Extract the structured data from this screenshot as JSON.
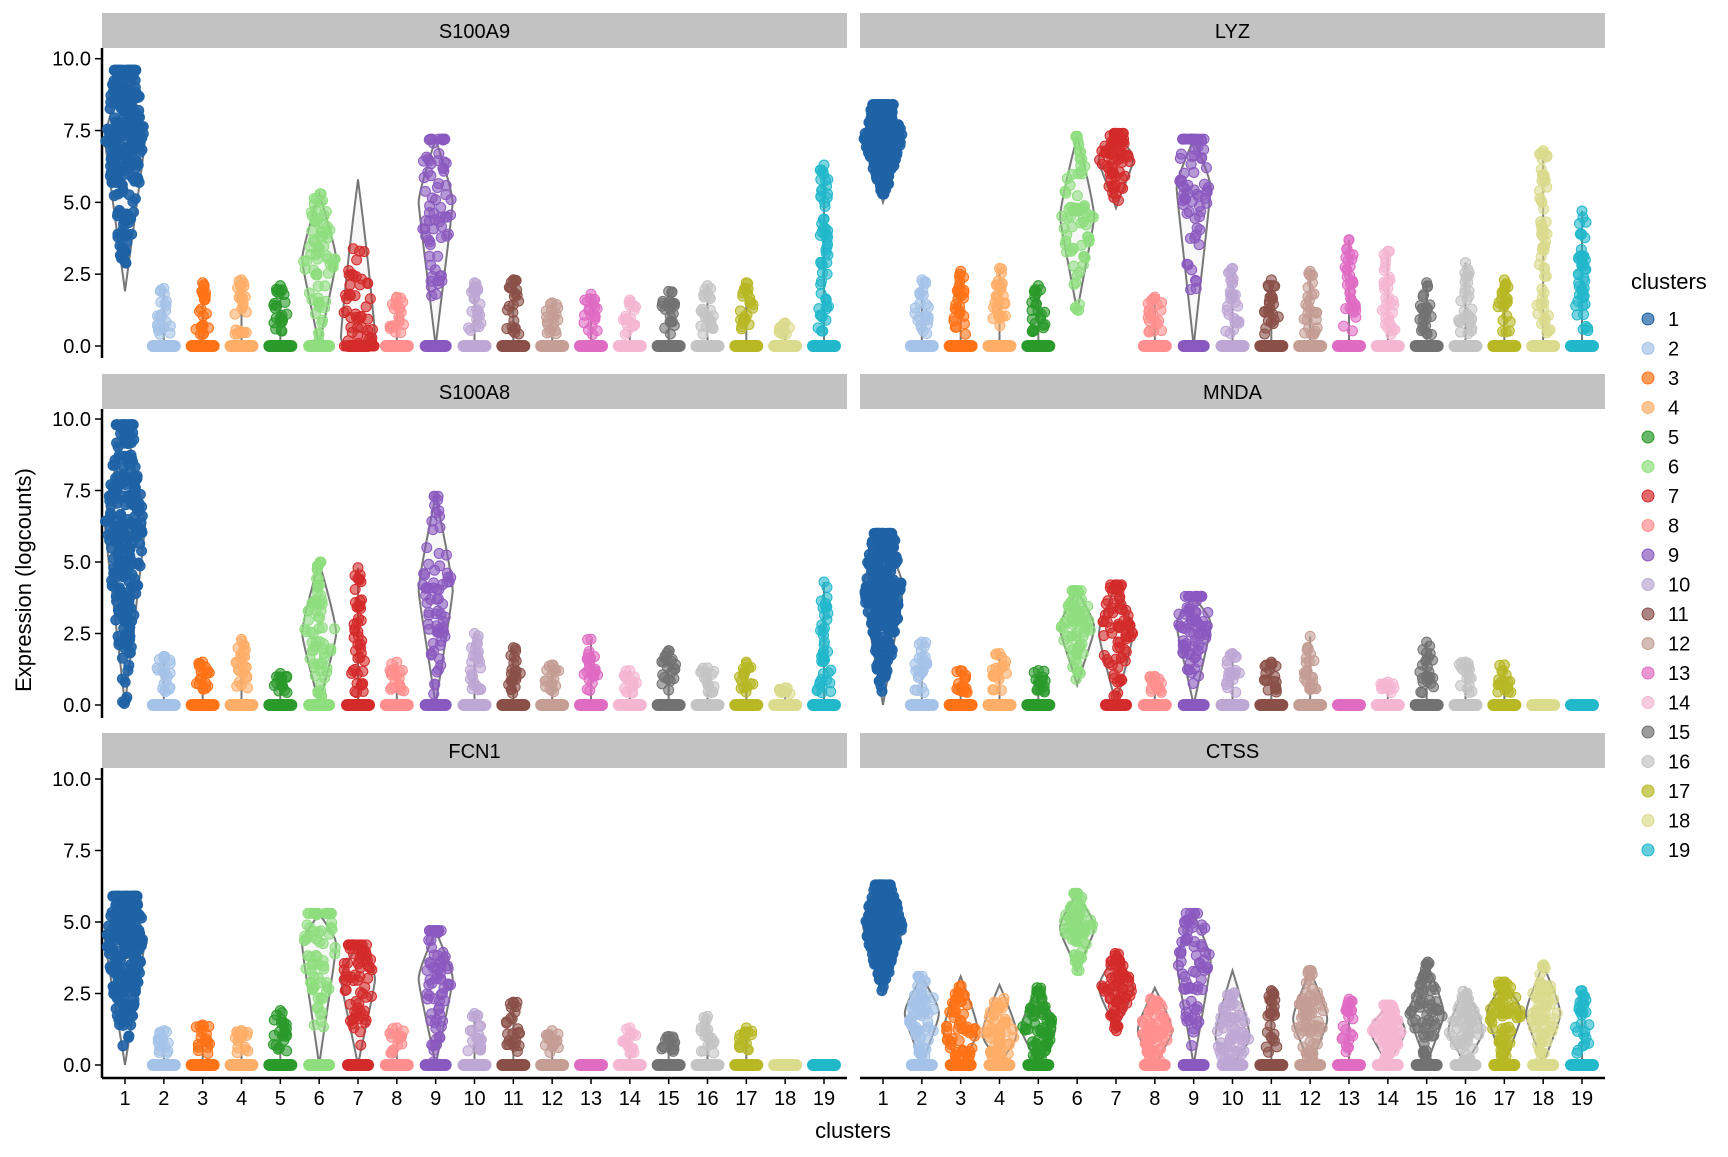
{
  "chart_data": {
    "type": "violin",
    "xlabel": "clusters",
    "ylabel": "Expression (logcounts)",
    "ylim": [
      0,
      10
    ],
    "yticks": [
      "0.0",
      "2.5",
      "5.0",
      "7.5",
      "10.0"
    ],
    "ytick_values": [
      0,
      2.5,
      5,
      7.5,
      10
    ],
    "categories": [
      "1",
      "2",
      "3",
      "4",
      "5",
      "6",
      "7",
      "8",
      "9",
      "10",
      "11",
      "12",
      "13",
      "14",
      "15",
      "16",
      "17",
      "18",
      "19"
    ],
    "legend": {
      "title": "clusters",
      "placement": "right"
    },
    "colors": [
      "#1f63a6",
      "#a5c3e8",
      "#ff7216",
      "#ffae68",
      "#2a9a2a",
      "#8ede7e",
      "#d42a2a",
      "#ff8f8e",
      "#8a59bf",
      "#bea7d4",
      "#8a5048",
      "#c49d94",
      "#e06bc3",
      "#f5b6d2",
      "#727272",
      "#c4c4c4",
      "#b7b824",
      "#dbdb8d",
      "#22b8cc"
    ],
    "value_format": "per cluster [min, mode, max] expression",
    "panels": [
      {
        "gene": "S100A9",
        "values": [
          [
            1.9,
            7.2,
            9.6
          ],
          [
            0,
            0,
            2.0
          ],
          [
            0,
            0,
            2.2
          ],
          [
            0,
            0,
            2.3
          ],
          [
            0,
            0,
            2.1
          ],
          [
            0,
            3.0,
            5.3
          ],
          [
            0,
            0.3,
            5.8
          ],
          [
            0,
            0,
            1.7
          ],
          [
            0,
            5.0,
            7.2
          ],
          [
            0,
            0,
            2.2
          ],
          [
            0,
            0,
            2.3
          ],
          [
            0,
            0,
            1.5
          ],
          [
            0,
            0,
            1.8
          ],
          [
            0,
            0,
            1.6
          ],
          [
            0,
            0,
            1.9
          ],
          [
            0,
            0,
            2.1
          ],
          [
            0,
            0,
            2.2
          ],
          [
            0,
            0,
            0.8
          ],
          [
            0,
            0,
            6.3
          ]
        ]
      },
      {
        "gene": "LYZ",
        "values": [
          [
            5.0,
            7.3,
            8.4
          ],
          [
            0,
            0,
            2.3
          ],
          [
            0,
            0,
            2.6
          ],
          [
            0,
            0,
            2.7
          ],
          [
            0,
            0,
            2.1
          ],
          [
            1.2,
            4.5,
            7.3
          ],
          [
            4.8,
            6.5,
            7.4
          ],
          [
            0,
            0,
            1.7
          ],
          [
            0,
            5.5,
            7.2
          ],
          [
            0,
            0,
            2.7
          ],
          [
            0,
            0,
            2.3
          ],
          [
            0,
            0,
            2.6
          ],
          [
            0,
            0,
            3.7
          ],
          [
            0,
            0,
            3.3
          ],
          [
            0,
            0,
            2.2
          ],
          [
            0,
            0,
            2.9
          ],
          [
            0,
            0,
            2.3
          ],
          [
            0,
            0,
            6.8
          ],
          [
            0,
            0,
            4.7
          ]
        ]
      },
      {
        "gene": "S100A8",
        "values": [
          [
            0,
            6.3,
            9.8
          ],
          [
            0,
            0,
            1.7
          ],
          [
            0,
            0,
            1.5
          ],
          [
            0,
            0,
            2.3
          ],
          [
            0,
            0,
            1.1
          ],
          [
            0,
            2.5,
            5.0
          ],
          [
            0,
            0,
            4.8
          ],
          [
            0,
            0,
            1.5
          ],
          [
            0,
            4.0,
            7.3
          ],
          [
            0,
            0,
            2.5
          ],
          [
            0,
            0,
            2.0
          ],
          [
            0,
            0,
            1.4
          ],
          [
            0,
            0,
            2.3
          ],
          [
            0,
            0,
            1.2
          ],
          [
            0,
            0,
            1.9
          ],
          [
            0,
            0,
            1.3
          ],
          [
            0,
            0,
            1.5
          ],
          [
            0,
            0,
            0.6
          ],
          [
            0,
            0,
            4.3
          ]
        ]
      },
      {
        "gene": "MNDA",
        "values": [
          [
            0,
            4.1,
            6.0
          ],
          [
            0,
            0,
            2.2
          ],
          [
            0,
            0,
            1.2
          ],
          [
            0,
            0,
            1.8
          ],
          [
            0,
            0,
            1.2
          ],
          [
            0.7,
            2.7,
            4.0
          ],
          [
            0,
            2.5,
            4.2
          ],
          [
            0,
            0,
            1.0
          ],
          [
            0,
            2.8,
            3.8
          ],
          [
            0,
            0,
            1.8
          ],
          [
            0,
            0,
            1.5
          ],
          [
            0,
            0,
            2.4
          ],
          [
            0,
            0,
            0
          ],
          [
            0,
            0,
            0.8
          ],
          [
            0,
            0,
            2.2
          ],
          [
            0,
            0,
            1.5
          ],
          [
            0,
            0,
            1.4
          ],
          [
            0,
            0,
            0
          ],
          [
            0,
            0,
            0
          ]
        ]
      },
      {
        "gene": "FCN1",
        "values": [
          [
            0,
            4.4,
            5.9
          ],
          [
            0,
            0,
            1.2
          ],
          [
            0,
            0,
            1.4
          ],
          [
            0,
            0,
            1.2
          ],
          [
            0,
            0,
            1.9
          ],
          [
            0,
            4.2,
            5.3
          ],
          [
            0,
            3.0,
            4.2
          ],
          [
            0,
            0,
            1.3
          ],
          [
            0,
            3.0,
            4.7
          ],
          [
            0,
            0,
            1.8
          ],
          [
            0,
            0,
            2.2
          ],
          [
            0,
            0,
            1.2
          ],
          [
            0,
            0,
            0
          ],
          [
            0,
            0,
            1.3
          ],
          [
            0,
            0,
            1.0
          ],
          [
            0,
            0,
            1.7
          ],
          [
            0,
            0,
            1.3
          ],
          [
            0,
            0,
            0
          ],
          [
            0,
            0,
            0
          ]
        ]
      },
      {
        "gene": "CTSS",
        "values": [
          [
            2.5,
            4.9,
            6.3
          ],
          [
            0,
            1.8,
            3.1
          ],
          [
            0,
            1.2,
            3.1
          ],
          [
            0,
            1.1,
            2.8
          ],
          [
            0,
            1.3,
            2.7
          ],
          [
            3.3,
            4.8,
            6.0
          ],
          [
            1.2,
            2.7,
            3.9
          ],
          [
            0,
            1.2,
            2.7
          ],
          [
            0,
            3.6,
            5.3
          ],
          [
            0,
            1.0,
            3.3
          ],
          [
            0,
            0,
            2.6
          ],
          [
            0,
            1.6,
            3.3
          ],
          [
            0,
            0,
            2.3
          ],
          [
            0,
            1.2,
            2.1
          ],
          [
            0,
            1.8,
            3.6
          ],
          [
            0,
            1.2,
            2.7
          ],
          [
            0,
            1.8,
            2.9
          ],
          [
            0,
            1.8,
            3.5
          ],
          [
            0,
            0,
            2.6
          ]
        ]
      }
    ]
  }
}
